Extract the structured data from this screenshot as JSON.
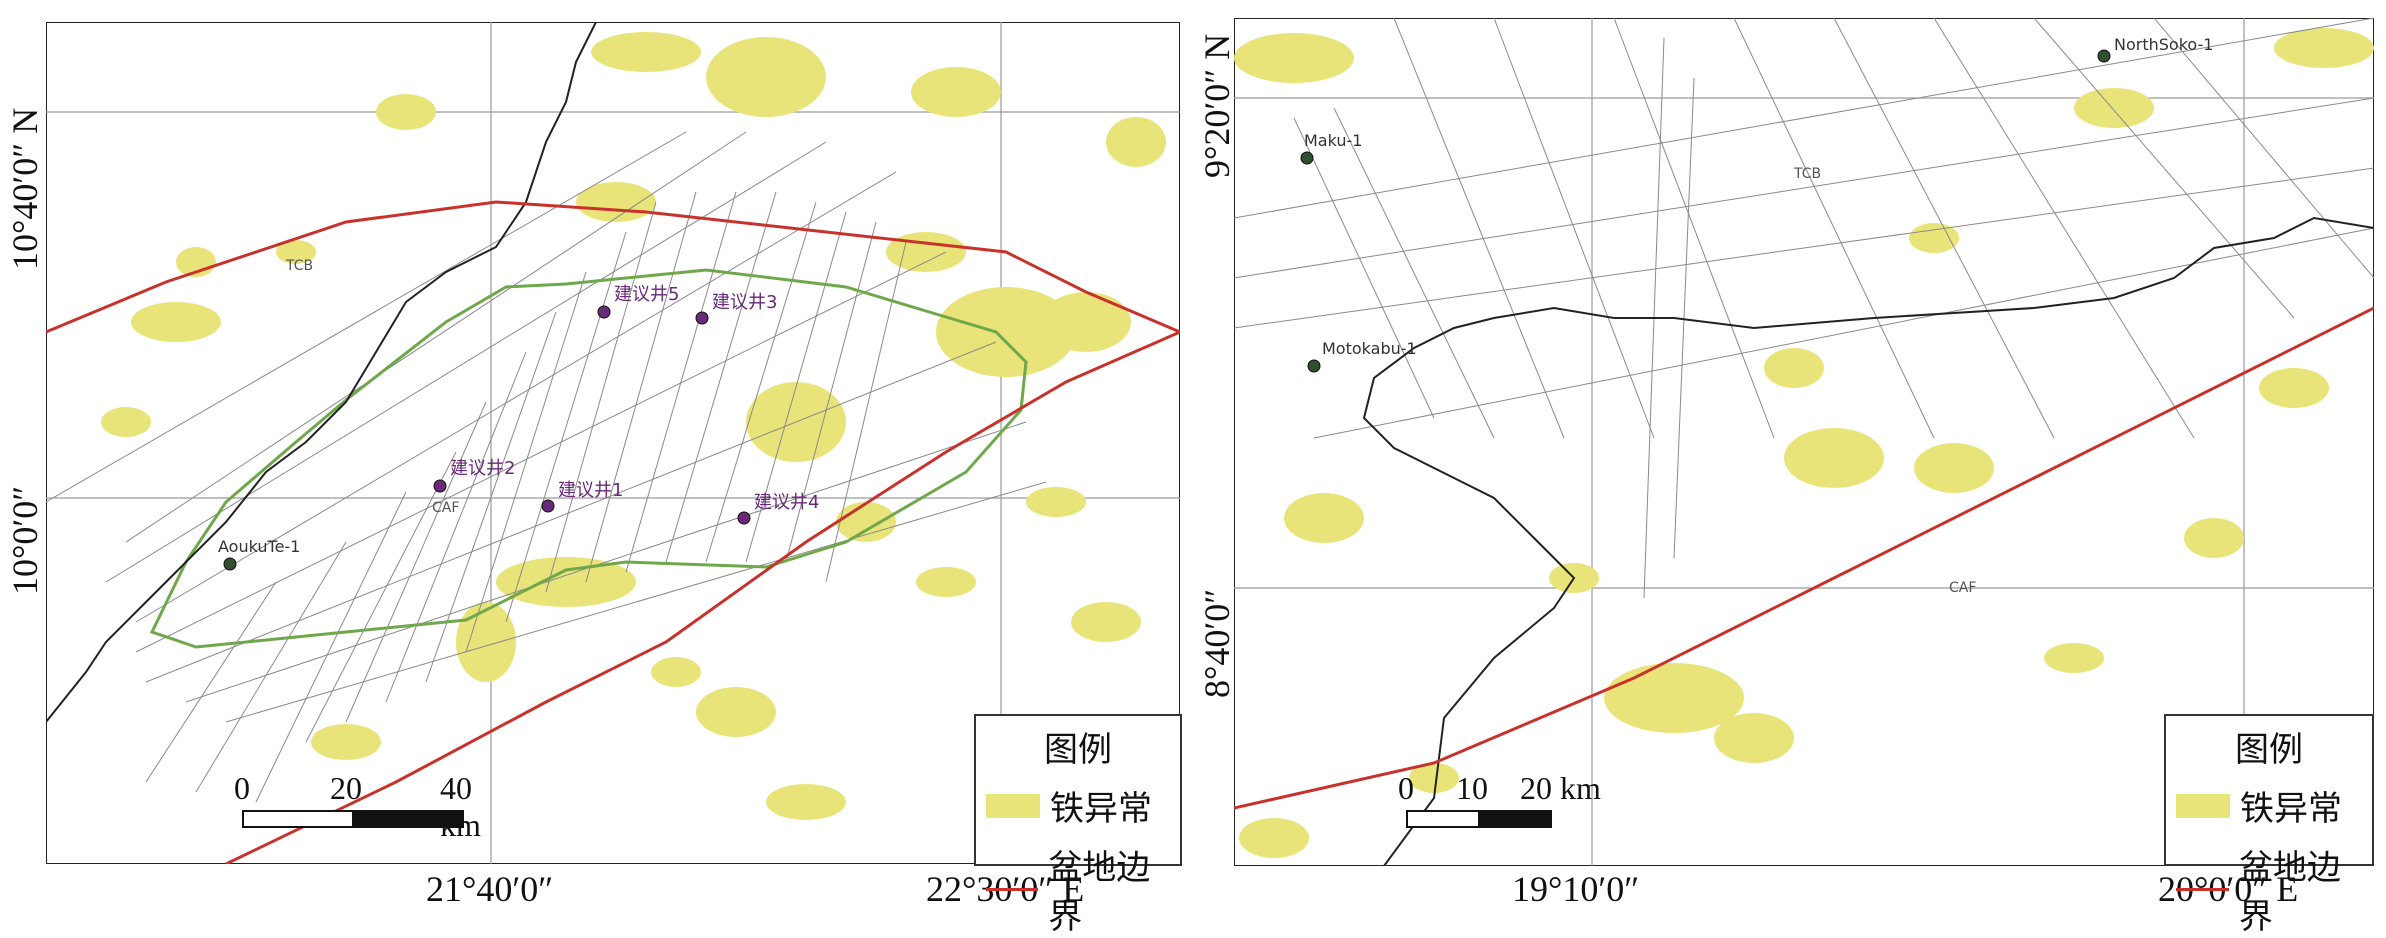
{
  "left_map": {
    "lat_labels": [
      "10°40′0″ N",
      "10°0′0″"
    ],
    "lon_labels": [
      "21°40′0″",
      "22°30′0″ E"
    ],
    "region_labels": [
      "TCB",
      "CAF"
    ],
    "wells": [
      {
        "name": "AoukuTe-1"
      },
      {
        "name": "建议井1"
      },
      {
        "name": "建议井2"
      },
      {
        "name": "建议井3"
      },
      {
        "name": "建议井4"
      },
      {
        "name": "建议井5"
      }
    ],
    "scale": {
      "ticks": [
        "0",
        "20",
        "40 km"
      ]
    },
    "legend": {
      "title": "图例",
      "items": [
        "铁异常",
        "盆地边界"
      ]
    }
  },
  "right_map": {
    "lat_labels": [
      "9°20′0″ N",
      "8°40′0″"
    ],
    "lon_labels": [
      "19°10′0″",
      "20°0′0″ E"
    ],
    "region_labels": [
      "TCB",
      "CAF"
    ],
    "wells": [
      {
        "name": "NorthSoko-1"
      },
      {
        "name": "Maku-1"
      },
      {
        "name": "Motokabu-1"
      }
    ],
    "scale": {
      "ticks": [
        "0",
        "10",
        "20 km"
      ]
    },
    "legend": {
      "title": "图例",
      "items": [
        "铁异常",
        "盆地边界"
      ]
    }
  },
  "colors": {
    "iron_anomaly": "#e9e47a",
    "basin_boundary": "#c8322b",
    "survey_area": "#6fa84a",
    "survey_lines": "#8a8a8a",
    "country_border": "#222222",
    "well_marker": "#2f4f2f",
    "well_label": "#6a2a7a"
  }
}
